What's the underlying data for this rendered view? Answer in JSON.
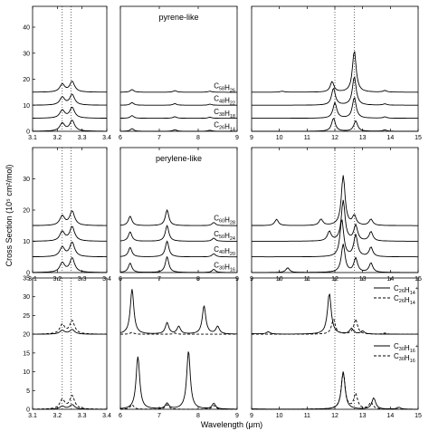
{
  "figure": {
    "ylabel": "Cross Section (10⁵ cm²/mol)",
    "xlabel": "Wavelength (μm)"
  },
  "colors": {
    "line": "#000000",
    "frame": "#000000",
    "background": "#ffffff"
  },
  "chart_data": {
    "type": "line",
    "rows": [
      {
        "name": "pyrene-like",
        "ylim": [
          0,
          48
        ],
        "yticks": [
          0,
          10,
          20,
          30,
          40
        ],
        "series": [
          {
            "formula_base": "C",
            "sub1": "58",
            "mid": "H",
            "sub2": "26",
            "offset": 15,
            "style": "solid"
          },
          {
            "formula_base": "C",
            "sub1": "48",
            "mid": "H",
            "sub2": "22",
            "offset": 10,
            "style": "solid"
          },
          {
            "formula_base": "C",
            "sub1": "38",
            "mid": "H",
            "sub2": "18",
            "offset": 5,
            "style": "solid"
          },
          {
            "formula_base": "C",
            "sub1": "26",
            "mid": "H",
            "sub2": "14",
            "offset": 0,
            "style": "solid"
          }
        ],
        "peaks": [
          [
            {
              "x": 3.22,
              "h": 3
            },
            {
              "x": 3.26,
              "h": 4
            },
            {
              "x": 6.3,
              "h": 1.0
            },
            {
              "x": 7.4,
              "h": 0.6
            },
            {
              "x": 8.3,
              "h": 0.4
            },
            {
              "x": 10.1,
              "h": 0.4
            },
            {
              "x": 11.9,
              "h": 4.0
            },
            {
              "x": 12.7,
              "h": 16
            },
            {
              "x": 13.8,
              "h": 0.6
            }
          ],
          [
            {
              "x": 3.22,
              "h": 3
            },
            {
              "x": 3.26,
              "h": 4
            },
            {
              "x": 6.3,
              "h": 1.0
            },
            {
              "x": 7.4,
              "h": 0.6
            },
            {
              "x": 8.3,
              "h": 0.4
            },
            {
              "x": 11.95,
              "h": 6.5
            },
            {
              "x": 12.7,
              "h": 11
            },
            {
              "x": 13.8,
              "h": 0.5
            }
          ],
          [
            {
              "x": 3.22,
              "h": 3
            },
            {
              "x": 3.26,
              "h": 4
            },
            {
              "x": 6.3,
              "h": 1.0
            },
            {
              "x": 7.4,
              "h": 0.6
            },
            {
              "x": 8.3,
              "h": 0.4
            },
            {
              "x": 12.0,
              "h": 6
            },
            {
              "x": 12.7,
              "h": 8
            },
            {
              "x": 13.8,
              "h": 0.5
            }
          ],
          [
            {
              "x": 3.22,
              "h": 3
            },
            {
              "x": 3.26,
              "h": 4
            },
            {
              "x": 6.3,
              "h": 1.0
            },
            {
              "x": 7.4,
              "h": 0.6
            },
            {
              "x": 8.3,
              "h": 0.4
            },
            {
              "x": 11.95,
              "h": 5
            },
            {
              "x": 12.75,
              "h": 4
            },
            {
              "x": 13.8,
              "h": 0.5
            }
          ]
        ],
        "vlines": {
          "left": [
            3.22,
            3.255
          ],
          "right": [
            12.0,
            12.7
          ]
        }
      },
      {
        "name": "perylene-like",
        "ylim": [
          0,
          40
        ],
        "yticks": [
          0,
          10,
          20,
          30
        ],
        "series": [
          {
            "formula_base": "C",
            "sub1": "60",
            "mid": "H",
            "sub2": "28",
            "offset": 15,
            "style": "solid"
          },
          {
            "formula_base": "C",
            "sub1": "50",
            "mid": "H",
            "sub2": "24",
            "offset": 10,
            "style": "solid"
          },
          {
            "formula_base": "C",
            "sub1": "40",
            "mid": "H",
            "sub2": "20",
            "offset": 5,
            "style": "solid"
          },
          {
            "formula_base": "C",
            "sub1": "30",
            "mid": "H",
            "sub2": "16",
            "offset": 0,
            "style": "solid"
          }
        ],
        "peaks": [
          [
            {
              "x": 3.22,
              "h": 3
            },
            {
              "x": 3.26,
              "h": 4.5
            },
            {
              "x": 6.25,
              "h": 3
            },
            {
              "x": 7.2,
              "h": 5
            },
            {
              "x": 8.4,
              "h": 1
            },
            {
              "x": 9.9,
              "h": 2
            },
            {
              "x": 11.5,
              "h": 2
            },
            {
              "x": 12.3,
              "h": 16
            },
            {
              "x": 12.7,
              "h": 3
            },
            {
              "x": 13.3,
              "h": 2
            }
          ],
          [
            {
              "x": 3.22,
              "h": 3
            },
            {
              "x": 3.26,
              "h": 4.5
            },
            {
              "x": 6.25,
              "h": 3
            },
            {
              "x": 7.2,
              "h": 5
            },
            {
              "x": 8.4,
              "h": 1
            },
            {
              "x": 11.8,
              "h": 3
            },
            {
              "x": 12.3,
              "h": 13
            },
            {
              "x": 12.75,
              "h": 5
            },
            {
              "x": 13.3,
              "h": 3
            }
          ],
          [
            {
              "x": 3.22,
              "h": 3
            },
            {
              "x": 3.26,
              "h": 4.5
            },
            {
              "x": 6.25,
              "h": 3
            },
            {
              "x": 7.2,
              "h": 5
            },
            {
              "x": 8.4,
              "h": 1
            },
            {
              "x": 12.25,
              "h": 12
            },
            {
              "x": 12.75,
              "h": 7
            },
            {
              "x": 13.3,
              "h": 3
            }
          ],
          [
            {
              "x": 3.22,
              "h": 3
            },
            {
              "x": 3.26,
              "h": 4.5
            },
            {
              "x": 6.25,
              "h": 3
            },
            {
              "x": 7.2,
              "h": 5
            },
            {
              "x": 8.4,
              "h": 1
            },
            {
              "x": 10.3,
              "h": 1.5
            },
            {
              "x": 12.3,
              "h": 9
            },
            {
              "x": 12.75,
              "h": 4.5
            },
            {
              "x": 13.3,
              "h": 3
            }
          ]
        ],
        "vlines": {
          "left": [
            3.22,
            3.255
          ],
          "right": [
            12.0,
            12.7
          ]
        }
      }
    ],
    "bottom": {
      "top": {
        "ylim": [
          0,
          35
        ],
        "yticks": [
          20,
          25,
          30,
          35
        ],
        "offset": 20,
        "legend": [
          {
            "formula_base": "C",
            "sub1": "26",
            "mid": "H",
            "sub2": "14",
            "sup": "+",
            "style": "solid"
          },
          {
            "formula_base": "C",
            "sub1": "26",
            "mid": "H",
            "sub2": "14",
            "sup": "",
            "style": "dashed"
          }
        ],
        "solid_peaks": [
          {
            "x": 3.22,
            "h": 1
          },
          {
            "x": 3.26,
            "h": 1.2
          },
          {
            "x": 6.3,
            "h": 12
          },
          {
            "x": 7.2,
            "h": 3
          },
          {
            "x": 7.5,
            "h": 2
          },
          {
            "x": 8.15,
            "h": 7.5
          },
          {
            "x": 8.5,
            "h": 2
          },
          {
            "x": 9.6,
            "h": 0.6
          },
          {
            "x": 11.8,
            "h": 11
          },
          {
            "x": 12.6,
            "h": 1.5
          },
          {
            "x": 13.0,
            "h": 0.8
          }
        ],
        "dashed_peaks": [
          {
            "x": 3.22,
            "h": 2.5
          },
          {
            "x": 3.26,
            "h": 3.5
          },
          {
            "x": 6.3,
            "h": 0.5
          },
          {
            "x": 7.4,
            "h": 0.3
          },
          {
            "x": 11.95,
            "h": 4
          },
          {
            "x": 12.75,
            "h": 4
          },
          {
            "x": 13.8,
            "h": 0.3
          }
        ]
      },
      "bot": {
        "ylim": [
          0,
          17
        ],
        "yticks": [
          0,
          5,
          10,
          15
        ],
        "offset": 0,
        "legend": [
          {
            "formula_base": "C",
            "sub1": "30",
            "mid": "H",
            "sub2": "16",
            "sup": "+",
            "style": "solid"
          },
          {
            "formula_base": "C",
            "sub1": "30",
            "mid": "H",
            "sub2": "16",
            "sup": "",
            "style": "dashed"
          }
        ],
        "solid_peaks": [
          {
            "x": 3.22,
            "h": 0.8
          },
          {
            "x": 3.26,
            "h": 1.2
          },
          {
            "x": 6.45,
            "h": 14
          },
          {
            "x": 7.2,
            "h": 1.5
          },
          {
            "x": 7.75,
            "h": 15.5
          },
          {
            "x": 8.4,
            "h": 1.5
          },
          {
            "x": 12.3,
            "h": 10
          },
          {
            "x": 13.4,
            "h": 3
          },
          {
            "x": 14.3,
            "h": 0.5
          }
        ],
        "dashed_peaks": [
          {
            "x": 3.22,
            "h": 2.5
          },
          {
            "x": 3.26,
            "h": 3.5
          },
          {
            "x": 6.3,
            "h": 1.2
          },
          {
            "x": 7.2,
            "h": 1.2
          },
          {
            "x": 8.4,
            "h": 1
          },
          {
            "x": 12.3,
            "h": 10
          },
          {
            "x": 12.75,
            "h": 4
          },
          {
            "x": 13.3,
            "h": 1.8
          }
        ]
      },
      "ylim": [
        0,
        35
      ],
      "yticks": [
        0,
        5,
        10,
        15,
        20,
        25,
        30,
        35
      ],
      "vlines": {
        "left": [
          3.22,
          3.255
        ],
        "right": [
          12.0,
          12.7
        ]
      }
    },
    "columns": [
      {
        "xlim": [
          3.1,
          3.4
        ],
        "xticks": [
          "3.1",
          "3.2",
          "3.3",
          "3.4"
        ]
      },
      {
        "xlim": [
          6,
          9
        ],
        "xticks": [
          "6",
          "7",
          "8",
          "9"
        ]
      },
      {
        "xlim": [
          9,
          15
        ],
        "xticks": [
          "9",
          "10",
          "11",
          "12",
          "13",
          "14",
          "15"
        ]
      }
    ]
  }
}
